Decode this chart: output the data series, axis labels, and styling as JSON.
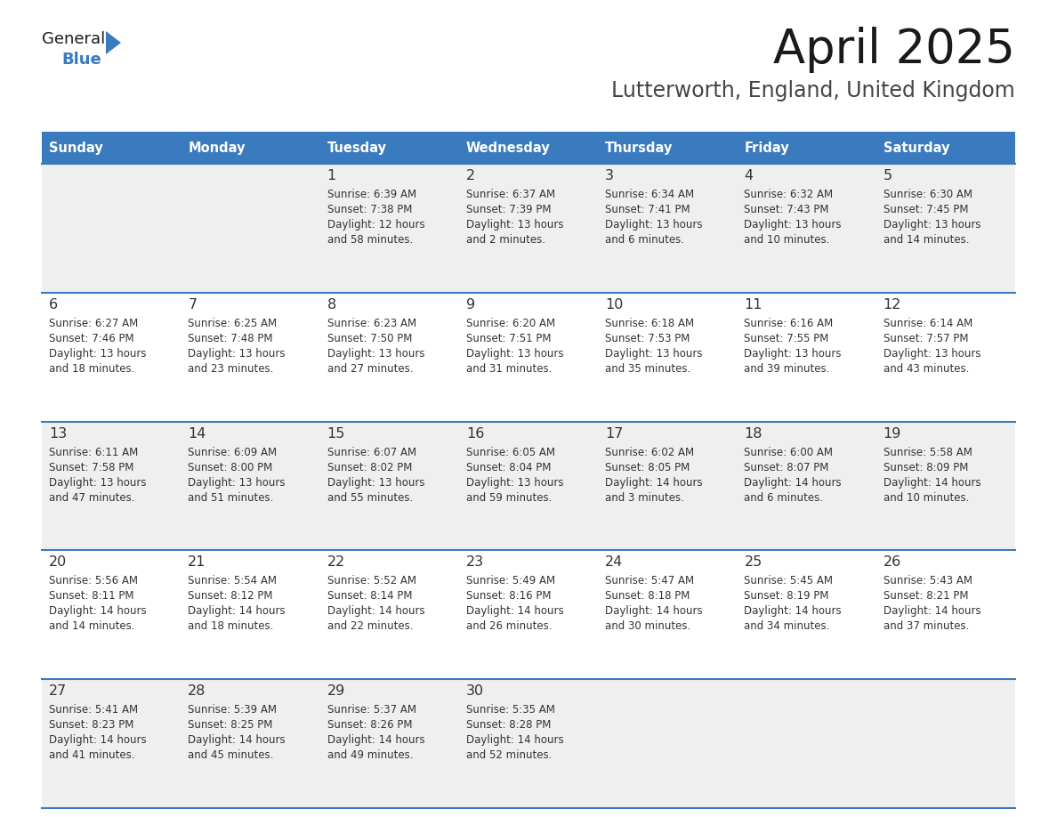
{
  "title": "April 2025",
  "subtitle": "Lutterworth, England, United Kingdom",
  "header_bg_color": "#3a7abf",
  "header_text_color": "#ffffff",
  "weekdays": [
    "Sunday",
    "Monday",
    "Tuesday",
    "Wednesday",
    "Thursday",
    "Friday",
    "Saturday"
  ],
  "row_bg_even": "#efefef",
  "row_bg_odd": "#ffffff",
  "divider_color": "#3a7abf",
  "text_color": "#333333",
  "days": [
    {
      "day": 1,
      "col": 2,
      "row": 0,
      "sunrise": "6:39 AM",
      "sunset": "7:38 PM",
      "daylight_h": "12 hours",
      "daylight_m": "58 minutes"
    },
    {
      "day": 2,
      "col": 3,
      "row": 0,
      "sunrise": "6:37 AM",
      "sunset": "7:39 PM",
      "daylight_h": "13 hours",
      "daylight_m": "2 minutes"
    },
    {
      "day": 3,
      "col": 4,
      "row": 0,
      "sunrise": "6:34 AM",
      "sunset": "7:41 PM",
      "daylight_h": "13 hours",
      "daylight_m": "6 minutes"
    },
    {
      "day": 4,
      "col": 5,
      "row": 0,
      "sunrise": "6:32 AM",
      "sunset": "7:43 PM",
      "daylight_h": "13 hours",
      "daylight_m": "10 minutes"
    },
    {
      "day": 5,
      "col": 6,
      "row": 0,
      "sunrise": "6:30 AM",
      "sunset": "7:45 PM",
      "daylight_h": "13 hours",
      "daylight_m": "14 minutes"
    },
    {
      "day": 6,
      "col": 0,
      "row": 1,
      "sunrise": "6:27 AM",
      "sunset": "7:46 PM",
      "daylight_h": "13 hours",
      "daylight_m": "18 minutes"
    },
    {
      "day": 7,
      "col": 1,
      "row": 1,
      "sunrise": "6:25 AM",
      "sunset": "7:48 PM",
      "daylight_h": "13 hours",
      "daylight_m": "23 minutes"
    },
    {
      "day": 8,
      "col": 2,
      "row": 1,
      "sunrise": "6:23 AM",
      "sunset": "7:50 PM",
      "daylight_h": "13 hours",
      "daylight_m": "27 minutes"
    },
    {
      "day": 9,
      "col": 3,
      "row": 1,
      "sunrise": "6:20 AM",
      "sunset": "7:51 PM",
      "daylight_h": "13 hours",
      "daylight_m": "31 minutes"
    },
    {
      "day": 10,
      "col": 4,
      "row": 1,
      "sunrise": "6:18 AM",
      "sunset": "7:53 PM",
      "daylight_h": "13 hours",
      "daylight_m": "35 minutes"
    },
    {
      "day": 11,
      "col": 5,
      "row": 1,
      "sunrise": "6:16 AM",
      "sunset": "7:55 PM",
      "daylight_h": "13 hours",
      "daylight_m": "39 minutes"
    },
    {
      "day": 12,
      "col": 6,
      "row": 1,
      "sunrise": "6:14 AM",
      "sunset": "7:57 PM",
      "daylight_h": "13 hours",
      "daylight_m": "43 minutes"
    },
    {
      "day": 13,
      "col": 0,
      "row": 2,
      "sunrise": "6:11 AM",
      "sunset": "7:58 PM",
      "daylight_h": "13 hours",
      "daylight_m": "47 minutes"
    },
    {
      "day": 14,
      "col": 1,
      "row": 2,
      "sunrise": "6:09 AM",
      "sunset": "8:00 PM",
      "daylight_h": "13 hours",
      "daylight_m": "51 minutes"
    },
    {
      "day": 15,
      "col": 2,
      "row": 2,
      "sunrise": "6:07 AM",
      "sunset": "8:02 PM",
      "daylight_h": "13 hours",
      "daylight_m": "55 minutes"
    },
    {
      "day": 16,
      "col": 3,
      "row": 2,
      "sunrise": "6:05 AM",
      "sunset": "8:04 PM",
      "daylight_h": "13 hours",
      "daylight_m": "59 minutes"
    },
    {
      "day": 17,
      "col": 4,
      "row": 2,
      "sunrise": "6:02 AM",
      "sunset": "8:05 PM",
      "daylight_h": "14 hours",
      "daylight_m": "3 minutes"
    },
    {
      "day": 18,
      "col": 5,
      "row": 2,
      "sunrise": "6:00 AM",
      "sunset": "8:07 PM",
      "daylight_h": "14 hours",
      "daylight_m": "6 minutes"
    },
    {
      "day": 19,
      "col": 6,
      "row": 2,
      "sunrise": "5:58 AM",
      "sunset": "8:09 PM",
      "daylight_h": "14 hours",
      "daylight_m": "10 minutes"
    },
    {
      "day": 20,
      "col": 0,
      "row": 3,
      "sunrise": "5:56 AM",
      "sunset": "8:11 PM",
      "daylight_h": "14 hours",
      "daylight_m": "14 minutes"
    },
    {
      "day": 21,
      "col": 1,
      "row": 3,
      "sunrise": "5:54 AM",
      "sunset": "8:12 PM",
      "daylight_h": "14 hours",
      "daylight_m": "18 minutes"
    },
    {
      "day": 22,
      "col": 2,
      "row": 3,
      "sunrise": "5:52 AM",
      "sunset": "8:14 PM",
      "daylight_h": "14 hours",
      "daylight_m": "22 minutes"
    },
    {
      "day": 23,
      "col": 3,
      "row": 3,
      "sunrise": "5:49 AM",
      "sunset": "8:16 PM",
      "daylight_h": "14 hours",
      "daylight_m": "26 minutes"
    },
    {
      "day": 24,
      "col": 4,
      "row": 3,
      "sunrise": "5:47 AM",
      "sunset": "8:18 PM",
      "daylight_h": "14 hours",
      "daylight_m": "30 minutes"
    },
    {
      "day": 25,
      "col": 5,
      "row": 3,
      "sunrise": "5:45 AM",
      "sunset": "8:19 PM",
      "daylight_h": "14 hours",
      "daylight_m": "34 minutes"
    },
    {
      "day": 26,
      "col": 6,
      "row": 3,
      "sunrise": "5:43 AM",
      "sunset": "8:21 PM",
      "daylight_h": "14 hours",
      "daylight_m": "37 minutes"
    },
    {
      "day": 27,
      "col": 0,
      "row": 4,
      "sunrise": "5:41 AM",
      "sunset": "8:23 PM",
      "daylight_h": "14 hours",
      "daylight_m": "41 minutes"
    },
    {
      "day": 28,
      "col": 1,
      "row": 4,
      "sunrise": "5:39 AM",
      "sunset": "8:25 PM",
      "daylight_h": "14 hours",
      "daylight_m": "45 minutes"
    },
    {
      "day": 29,
      "col": 2,
      "row": 4,
      "sunrise": "5:37 AM",
      "sunset": "8:26 PM",
      "daylight_h": "14 hours",
      "daylight_m": "49 minutes"
    },
    {
      "day": 30,
      "col": 3,
      "row": 4,
      "sunrise": "5:35 AM",
      "sunset": "8:28 PM",
      "daylight_h": "14 hours",
      "daylight_m": "52 minutes"
    }
  ]
}
